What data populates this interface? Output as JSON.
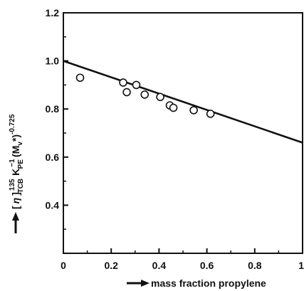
{
  "chart_data": {
    "type": "scatter",
    "title": "",
    "xlabel": "mass fraction propylene",
    "ylabel": {
      "parts": [
        "[",
        "η",
        "]",
        "135",
        "TCB",
        "K",
        "−1",
        "PE",
        "(M",
        "v",
        "*)",
        "-0.725"
      ]
    },
    "xlim": [
      0,
      1
    ],
    "ylim": [
      0.2,
      1.2
    ],
    "x_ticks": [
      "0",
      "0.2",
      "0.4",
      "0.6",
      "0.8",
      "1"
    ],
    "y_ticks": [
      "1.2",
      "1.0",
      "0.8",
      "0.6",
      "0.4"
    ],
    "grid": false,
    "points": [
      {
        "x": 0.07,
        "y": 0.93
      },
      {
        "x": 0.25,
        "y": 0.91
      },
      {
        "x": 0.265,
        "y": 0.87
      },
      {
        "x": 0.305,
        "y": 0.9
      },
      {
        "x": 0.34,
        "y": 0.86
      },
      {
        "x": 0.405,
        "y": 0.85
      },
      {
        "x": 0.445,
        "y": 0.815
      },
      {
        "x": 0.46,
        "y": 0.805
      },
      {
        "x": 0.545,
        "y": 0.795
      },
      {
        "x": 0.615,
        "y": 0.78
      }
    ],
    "fit_line": {
      "x": [
        0,
        1
      ],
      "y": [
        1.0,
        0.66
      ]
    },
    "colors": {
      "axis": "#111111",
      "line": "#111111",
      "marker_stroke": "#111111",
      "marker_fill": "#ffffff"
    }
  }
}
